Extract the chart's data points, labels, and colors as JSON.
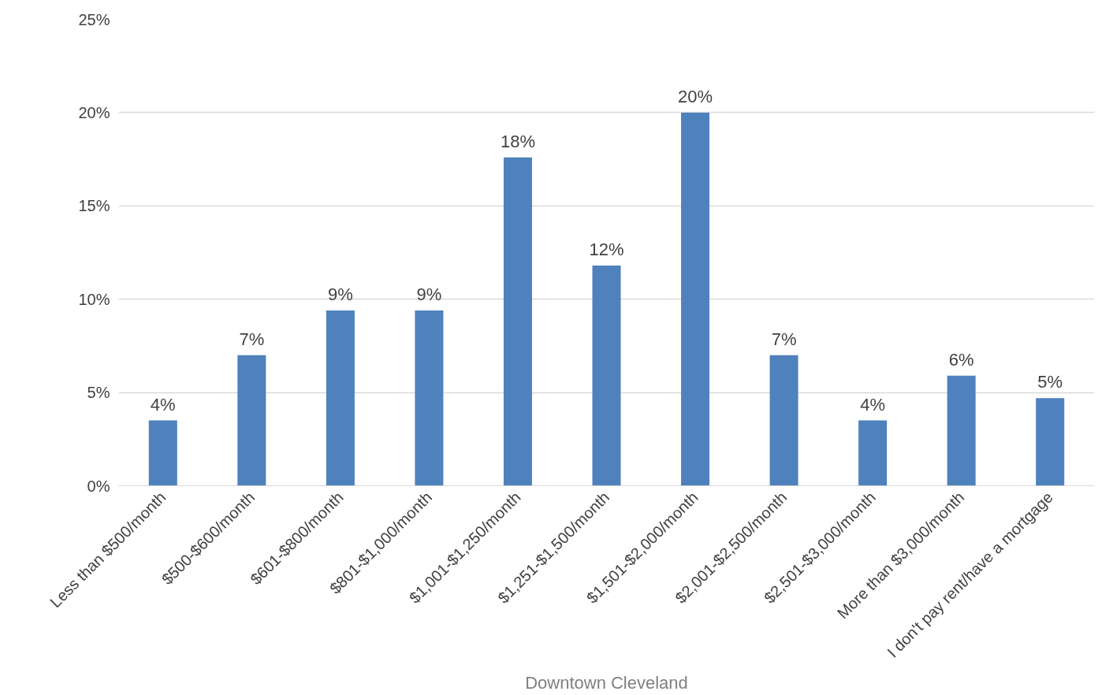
{
  "chart_data": {
    "type": "bar",
    "xlabel": "Downtown Cleveland",
    "categories": [
      "Less than $500/month",
      "$500-$600/month",
      "$601-$800/month",
      "$801-$1,000/month",
      "$1,001-$1,250/month",
      "$1,251-$1,500/month",
      "$1,501-$2,000/month",
      "$2,001-$2,500/month",
      "$2,501-$3,000/month",
      "More than $3,000/month",
      "I don't pay rent/have a mortgage"
    ],
    "series": [
      {
        "color": "#4f81bd",
        "values": [
          3.5,
          7.0,
          9.4,
          9.4,
          17.6,
          11.8,
          20.0,
          7.0,
          3.5,
          5.9,
          4.7
        ],
        "value_labels": [
          "4%",
          "7%",
          "9%",
          "9%",
          "18%",
          "12%",
          "20%",
          "7%",
          "4%",
          "6%",
          "5%"
        ]
      }
    ],
    "ylim": [
      0,
      25
    ],
    "yticks": [
      {
        "value": 0,
        "label": "0%"
      },
      {
        "value": 5,
        "label": "5%"
      },
      {
        "value": 10,
        "label": "10%"
      },
      {
        "value": 15,
        "label": "15%"
      },
      {
        "value": 20,
        "label": "20%"
      },
      {
        "value": 25,
        "label": "25%"
      }
    ],
    "grid": "y"
  }
}
